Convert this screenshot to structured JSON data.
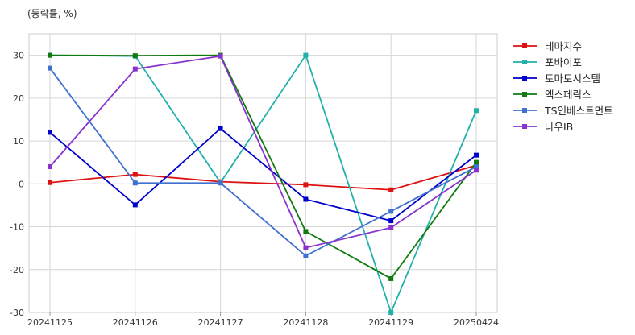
{
  "unit_label": "(등락률, %)",
  "chart_data": {
    "type": "line",
    "categories": [
      "20241125",
      "20241126",
      "20241127",
      "20241128",
      "20241129",
      "20250424"
    ],
    "ylim": [
      -30,
      35
    ],
    "yticks": [
      -30,
      -20,
      -10,
      0,
      10,
      20,
      30
    ],
    "grid": true,
    "legend_position": "right",
    "series": [
      {
        "name": "테마지수",
        "color": "#dd1111",
        "values": [
          0.3,
          2.2,
          0.5,
          -0.2,
          -1.4,
          4.3
        ]
      },
      {
        "name": "포바이포",
        "color": "#22b0aa",
        "values": [
          30,
          29.8,
          0.3,
          30,
          -30,
          17.1
        ]
      },
      {
        "name": "토마토시스템",
        "color": "#0000cc",
        "values": [
          12,
          -4.9,
          12.9,
          -3.6,
          -8.6,
          6.7
        ]
      },
      {
        "name": "엑스페릭스",
        "color": "#107a10",
        "values": [
          30,
          29.9,
          30,
          -11.1,
          -22.1,
          5
        ]
      },
      {
        "name": "TS인베스트먼트",
        "color": "#4070d0",
        "values": [
          27,
          0.2,
          0.2,
          -16.8,
          -6.4,
          4
        ]
      },
      {
        "name": "나우IB",
        "color": "#8833cc",
        "values": [
          4,
          26.8,
          29.8,
          -14.9,
          -10.2,
          3.2
        ]
      }
    ]
  }
}
